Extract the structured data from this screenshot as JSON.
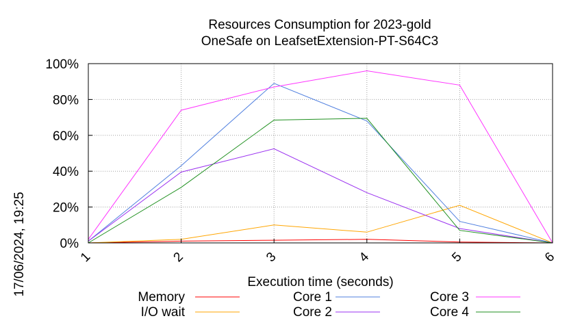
{
  "chart_data": {
    "type": "line",
    "title": "Resources Consumption for 2023-gold",
    "subtitle": "OneSafe on LeafsetExtension-PT-S64C3",
    "xlabel": "Execution time (seconds)",
    "ylabel": "",
    "side_label": "17/06/2024, 19:25",
    "x": [
      1,
      2,
      3,
      4,
      5,
      6
    ],
    "x_tick_labels": [
      "1",
      "2",
      "3",
      "4",
      "5",
      "6"
    ],
    "xlim": [
      1,
      6
    ],
    "ylim": [
      0,
      100
    ],
    "y_ticks": [
      0,
      20,
      40,
      60,
      80,
      100
    ],
    "y_tick_labels": [
      "0%",
      "20%",
      "40%",
      "60%",
      "80%",
      "100%"
    ],
    "grid": true,
    "legend_position": "bottom",
    "series": [
      {
        "name": "Memory",
        "color": "#ff0000",
        "values": [
          0,
          1,
          1.5,
          2,
          0.5,
          0
        ]
      },
      {
        "name": "I/O wait",
        "color": "#ffa500",
        "values": [
          0,
          2,
          10,
          6,
          21,
          0
        ]
      },
      {
        "name": "Core 1",
        "color": "#4f7fdf",
        "values": [
          1,
          43,
          89,
          68,
          12,
          0
        ]
      },
      {
        "name": "Core 2",
        "color": "#9a30f0",
        "values": [
          1,
          39.5,
          52.5,
          28,
          8,
          0
        ]
      },
      {
        "name": "Core 3",
        "color": "#ff33ff",
        "values": [
          2,
          74,
          87,
          96,
          88,
          0
        ]
      },
      {
        "name": "Core 4",
        "color": "#1e8f1e",
        "values": [
          0,
          31,
          68.5,
          69.5,
          7,
          0
        ]
      }
    ]
  }
}
